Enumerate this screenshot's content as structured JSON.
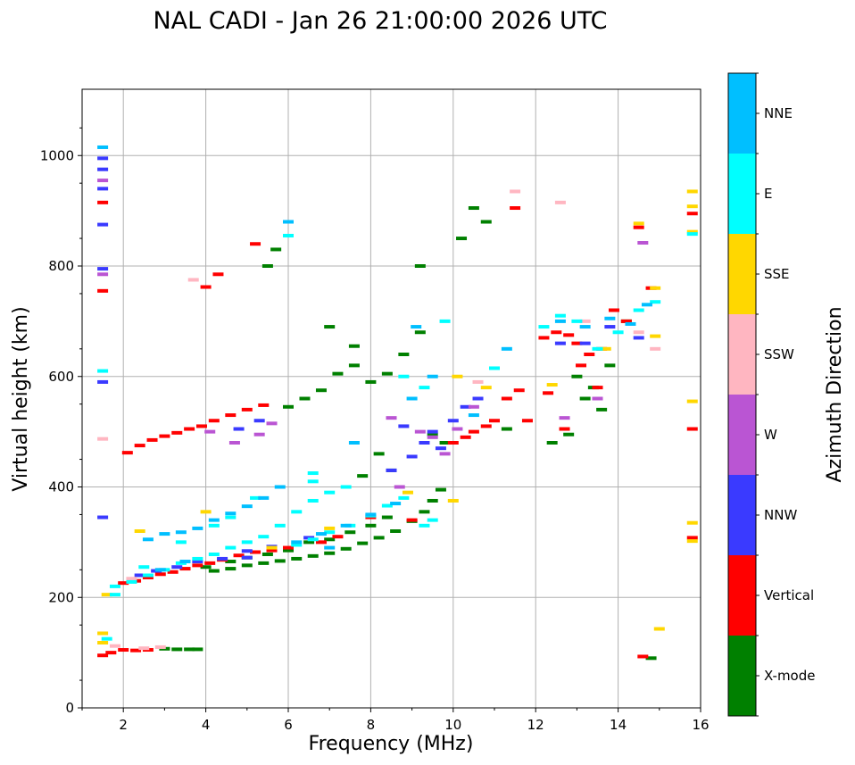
{
  "chart_data": {
    "type": "scatter",
    "title": "NAL CADI - Jan 26 21:00:00 2026 UTC",
    "xlabel": "Frequency (MHz)",
    "ylabel": "Virtual height (km)",
    "xlim": [
      1,
      16
    ],
    "ylim": [
      0,
      1120
    ],
    "xticks": [
      "2",
      "4",
      "6",
      "8",
      "10",
      "12",
      "14",
      "16"
    ],
    "yticks": [
      "0",
      "200",
      "400",
      "600",
      "800",
      "1000"
    ],
    "grid": true,
    "colorbar": {
      "label": "Azimuth Direction",
      "categories": [
        {
          "name": "NNE",
          "color": "#00bfff"
        },
        {
          "name": "E",
          "color": "#00ffff"
        },
        {
          "name": "SSE",
          "color": "#ffd700"
        },
        {
          "name": "SSW",
          "color": "#ffb6c1"
        },
        {
          "name": "W",
          "color": "#ba55d3"
        },
        {
          "name": "NNW",
          "color": "#3a3aff"
        },
        {
          "name": "Vertical",
          "color": "#ff0000"
        },
        {
          "name": "X-mode",
          "color": "#008000"
        }
      ]
    },
    "series": [
      {
        "name": "X-mode",
        "color": "#008000",
        "points": [
          [
            3.0,
            107
          ],
          [
            3.3,
            106
          ],
          [
            3.6,
            106
          ],
          [
            3.8,
            106
          ],
          [
            4.2,
            248
          ],
          [
            4.6,
            252
          ],
          [
            5.0,
            258
          ],
          [
            5.4,
            262
          ],
          [
            5.8,
            266
          ],
          [
            6.2,
            270
          ],
          [
            6.6,
            275
          ],
          [
            7.0,
            280
          ],
          [
            7.4,
            288
          ],
          [
            7.8,
            298
          ],
          [
            8.2,
            308
          ],
          [
            8.6,
            320
          ],
          [
            9.0,
            338
          ],
          [
            9.3,
            355
          ],
          [
            9.5,
            375
          ],
          [
            9.7,
            395
          ],
          [
            8.0,
            330
          ],
          [
            8.4,
            345
          ],
          [
            7.5,
            318
          ],
          [
            7.0,
            305
          ],
          [
            6.5,
            300
          ],
          [
            6.0,
            285
          ],
          [
            5.5,
            278
          ],
          [
            5.0,
            272
          ],
          [
            4.6,
            265
          ],
          [
            4.0,
            255
          ],
          [
            6.0,
            545
          ],
          [
            6.4,
            560
          ],
          [
            6.8,
            575
          ],
          [
            7.2,
            605
          ],
          [
            7.6,
            620
          ],
          [
            8.0,
            590
          ],
          [
            8.4,
            605
          ],
          [
            8.8,
            640
          ],
          [
            9.2,
            680
          ],
          [
            9.5,
            495
          ],
          [
            9.8,
            480
          ],
          [
            10.5,
            905
          ],
          [
            10.8,
            880
          ],
          [
            11.3,
            505
          ],
          [
            12.4,
            480
          ],
          [
            12.8,
            495
          ],
          [
            13.0,
            600
          ],
          [
            13.2,
            560
          ],
          [
            13.4,
            580
          ],
          [
            13.6,
            540
          ],
          [
            13.8,
            620
          ],
          [
            14.2,
            700
          ],
          [
            14.8,
            90
          ],
          [
            7.0,
            690
          ],
          [
            7.6,
            655
          ],
          [
            8.2,
            460
          ],
          [
            8.5,
            430
          ],
          [
            7.8,
            420
          ],
          [
            5.5,
            800
          ],
          [
            5.7,
            830
          ],
          [
            9.2,
            800
          ],
          [
            10.2,
            850
          ]
        ]
      },
      {
        "name": "Vertical",
        "color": "#ff0000",
        "points": [
          [
            1.5,
            95
          ],
          [
            1.7,
            100
          ],
          [
            2.0,
            105
          ],
          [
            2.3,
            104
          ],
          [
            2.6,
            105
          ],
          [
            2.0,
            226
          ],
          [
            2.3,
            230
          ],
          [
            2.6,
            236
          ],
          [
            2.9,
            242
          ],
          [
            3.2,
            246
          ],
          [
            3.5,
            252
          ],
          [
            3.8,
            258
          ],
          [
            4.1,
            262
          ],
          [
            4.4,
            268
          ],
          [
            4.8,
            276
          ],
          [
            5.2,
            282
          ],
          [
            5.6,
            285
          ],
          [
            6.0,
            290
          ],
          [
            2.1,
            462
          ],
          [
            2.4,
            475
          ],
          [
            2.7,
            485
          ],
          [
            3.0,
            492
          ],
          [
            3.3,
            498
          ],
          [
            3.6,
            505
          ],
          [
            3.9,
            510
          ],
          [
            4.2,
            520
          ],
          [
            4.6,
            530
          ],
          [
            5.0,
            540
          ],
          [
            5.4,
            548
          ],
          [
            1.5,
            915
          ],
          [
            1.5,
            755
          ],
          [
            4.0,
            762
          ],
          [
            4.3,
            785
          ],
          [
            5.2,
            840
          ],
          [
            6.8,
            300
          ],
          [
            7.2,
            310
          ],
          [
            8.0,
            345
          ],
          [
            9.0,
            340
          ],
          [
            10.0,
            480
          ],
          [
            10.3,
            490
          ],
          [
            10.5,
            500
          ],
          [
            10.8,
            510
          ],
          [
            11.0,
            520
          ],
          [
            11.3,
            560
          ],
          [
            11.6,
            575
          ],
          [
            12.2,
            670
          ],
          [
            12.5,
            680
          ],
          [
            12.8,
            675
          ],
          [
            13.0,
            660
          ],
          [
            13.3,
            640
          ],
          [
            13.6,
            650
          ],
          [
            13.9,
            720
          ],
          [
            14.2,
            700
          ],
          [
            14.5,
            870
          ],
          [
            14.8,
            760
          ],
          [
            15.8,
            505
          ],
          [
            15.8,
            308
          ],
          [
            15.8,
            895
          ],
          [
            14.6,
            93
          ],
          [
            11.5,
            905
          ],
          [
            11.8,
            520
          ],
          [
            12.3,
            570
          ],
          [
            12.7,
            505
          ],
          [
            13.1,
            620
          ],
          [
            13.5,
            580
          ]
        ]
      },
      {
        "name": "NNW",
        "color": "#3a3aff",
        "points": [
          [
            1.5,
            995
          ],
          [
            1.5,
            975
          ],
          [
            1.5,
            940
          ],
          [
            1.5,
            875
          ],
          [
            1.5,
            795
          ],
          [
            1.5,
            590
          ],
          [
            1.5,
            345
          ],
          [
            2.4,
            240
          ],
          [
            2.8,
            248
          ],
          [
            3.3,
            255
          ],
          [
            3.8,
            265
          ],
          [
            4.4,
            270
          ],
          [
            5.0,
            284
          ],
          [
            5.6,
            292
          ],
          [
            4.8,
            505
          ],
          [
            5.3,
            520
          ],
          [
            5.0,
            272
          ],
          [
            6.5,
            308
          ],
          [
            8.5,
            430
          ],
          [
            9.0,
            455
          ],
          [
            9.3,
            480
          ],
          [
            9.5,
            500
          ],
          [
            10.0,
            520
          ],
          [
            10.3,
            545
          ],
          [
            10.6,
            560
          ],
          [
            12.6,
            660
          ],
          [
            13.2,
            660
          ],
          [
            13.8,
            690
          ],
          [
            14.5,
            670
          ],
          [
            8.8,
            510
          ],
          [
            9.7,
            470
          ]
        ]
      },
      {
        "name": "W",
        "color": "#ba55d3",
        "points": [
          [
            1.5,
            955
          ],
          [
            1.5,
            785
          ],
          [
            4.1,
            500
          ],
          [
            4.7,
            480
          ],
          [
            5.3,
            495
          ],
          [
            5.6,
            515
          ],
          [
            8.5,
            525
          ],
          [
            9.2,
            500
          ],
          [
            9.5,
            490
          ],
          [
            10.1,
            505
          ],
          [
            10.5,
            545
          ],
          [
            12.7,
            525
          ],
          [
            13.5,
            560
          ],
          [
            14.6,
            842
          ],
          [
            8.7,
            400
          ],
          [
            9.8,
            460
          ]
        ]
      },
      {
        "name": "SSW",
        "color": "#ffb6c1",
        "points": [
          [
            1.5,
            487
          ],
          [
            1.8,
            112
          ],
          [
            2.5,
            108
          ],
          [
            2.9,
            110
          ],
          [
            2.2,
            234
          ],
          [
            3.7,
            775
          ],
          [
            11.5,
            935
          ],
          [
            12.6,
            915
          ],
          [
            13.2,
            700
          ],
          [
            14.5,
            680
          ],
          [
            14.9,
            650
          ],
          [
            10.6,
            590
          ]
        ]
      },
      {
        "name": "SSE",
        "color": "#ffd700",
        "points": [
          [
            1.5,
            135
          ],
          [
            1.5,
            118
          ],
          [
            1.6,
            205
          ],
          [
            2.4,
            320
          ],
          [
            4.0,
            355
          ],
          [
            8.9,
            390
          ],
          [
            10.0,
            375
          ],
          [
            10.1,
            600
          ],
          [
            10.8,
            580
          ],
          [
            14.5,
            877
          ],
          [
            14.9,
            760
          ],
          [
            14.9,
            673
          ],
          [
            15.0,
            143
          ],
          [
            15.8,
            935
          ],
          [
            15.8,
            908
          ],
          [
            15.8,
            862
          ],
          [
            15.8,
            555
          ],
          [
            15.8,
            335
          ],
          [
            15.8,
            302
          ],
          [
            12.4,
            585
          ],
          [
            13.7,
            650
          ],
          [
            7.0,
            325
          ],
          [
            5.6,
            290
          ]
        ]
      },
      {
        "name": "E",
        "color": "#00ffff",
        "points": [
          [
            1.5,
            610
          ],
          [
            1.6,
            125
          ],
          [
            1.8,
            220
          ],
          [
            2.2,
            228
          ],
          [
            2.6,
            240
          ],
          [
            3.0,
            250
          ],
          [
            3.4,
            262
          ],
          [
            3.8,
            270
          ],
          [
            4.2,
            278
          ],
          [
            4.6,
            290
          ],
          [
            5.0,
            300
          ],
          [
            5.4,
            310
          ],
          [
            5.8,
            330
          ],
          [
            6.2,
            355
          ],
          [
            6.6,
            375
          ],
          [
            7.0,
            390
          ],
          [
            7.4,
            400
          ],
          [
            6.2,
            295
          ],
          [
            6.6,
            305
          ],
          [
            7.0,
            318
          ],
          [
            7.5,
            330
          ],
          [
            8.0,
            348
          ],
          [
            8.4,
            366
          ],
          [
            8.8,
            380
          ],
          [
            9.3,
            330
          ],
          [
            9.5,
            340
          ],
          [
            4.2,
            330
          ],
          [
            4.6,
            345
          ],
          [
            5.2,
            380
          ],
          [
            6.6,
            425
          ],
          [
            6.0,
            855
          ],
          [
            6.6,
            410
          ],
          [
            8.8,
            600
          ],
          [
            9.3,
            580
          ],
          [
            9.8,
            700
          ],
          [
            11.0,
            615
          ],
          [
            12.2,
            690
          ],
          [
            12.6,
            710
          ],
          [
            13.0,
            700
          ],
          [
            13.5,
            650
          ],
          [
            14.0,
            680
          ],
          [
            14.5,
            720
          ],
          [
            14.9,
            735
          ],
          [
            15.8,
            858
          ],
          [
            1.8,
            205
          ],
          [
            2.5,
            255
          ],
          [
            3.4,
            300
          ]
        ]
      },
      {
        "name": "NNE",
        "color": "#00bfff",
        "points": [
          [
            1.5,
            1015
          ],
          [
            2.6,
            305
          ],
          [
            3.0,
            315
          ],
          [
            3.4,
            318
          ],
          [
            3.8,
            325
          ],
          [
            4.2,
            340
          ],
          [
            4.6,
            352
          ],
          [
            5.0,
            365
          ],
          [
            5.4,
            380
          ],
          [
            5.8,
            400
          ],
          [
            6.0,
            880
          ],
          [
            6.2,
            300
          ],
          [
            6.8,
            315
          ],
          [
            7.4,
            330
          ],
          [
            8.0,
            350
          ],
          [
            8.6,
            370
          ],
          [
            9.1,
            690
          ],
          [
            9.5,
            600
          ],
          [
            9.0,
            560
          ],
          [
            10.5,
            530
          ],
          [
            11.3,
            650
          ],
          [
            12.6,
            700
          ],
          [
            13.2,
            690
          ],
          [
            13.8,
            705
          ],
          [
            14.3,
            695
          ],
          [
            14.7,
            730
          ],
          [
            2.9,
            250
          ],
          [
            3.5,
            265
          ],
          [
            7.0,
            290
          ],
          [
            7.6,
            480
          ]
        ]
      }
    ]
  }
}
